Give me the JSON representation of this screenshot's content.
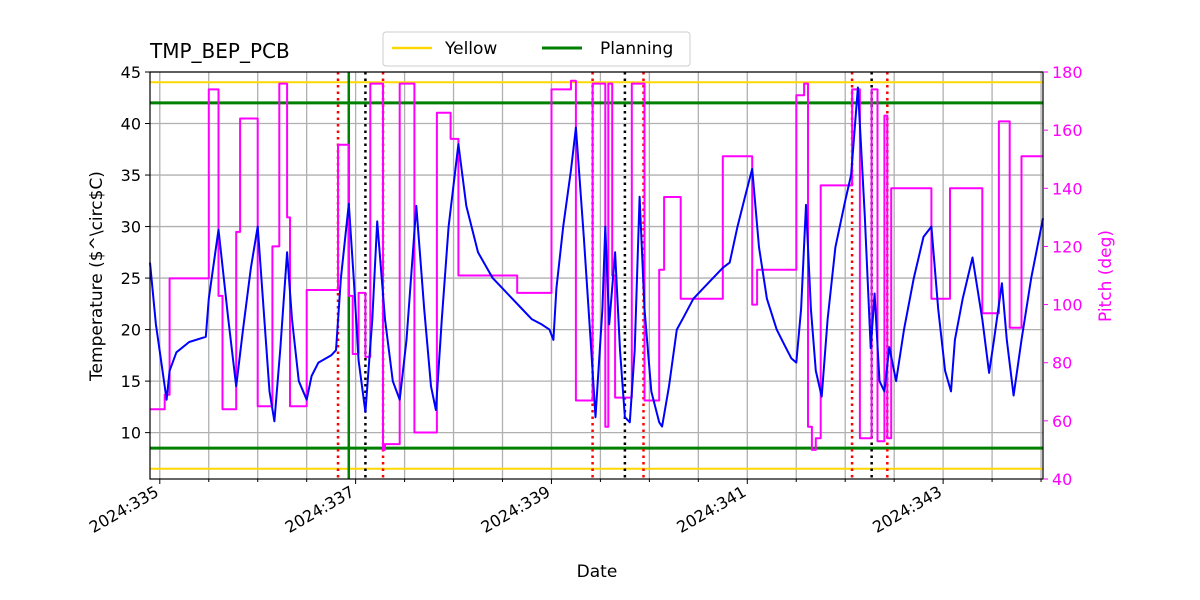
{
  "chart_data": {
    "type": "line",
    "title": "TMP_BEP_PCB",
    "xlabel": "Date",
    "ylabel": "Temperature ($^\\circ$C)",
    "y2label": "Pitch (deg)",
    "xlim": [
      334.9,
      344.02
    ],
    "ylim": [
      5.5,
      45
    ],
    "y2lim": [
      40,
      180
    ],
    "x_ticks": [
      335,
      337,
      339,
      341,
      343
    ],
    "x_tick_labels": [
      "2024:335",
      "2024:337",
      "2024:339",
      "2024:341",
      "2024:343"
    ],
    "y_ticks": [
      10,
      15,
      20,
      25,
      30,
      35,
      40,
      45
    ],
    "y2_ticks": [
      40,
      60,
      80,
      100,
      120,
      140,
      160,
      180
    ],
    "grid": true,
    "legend": {
      "placement": "top-center",
      "entries": [
        {
          "label": "Yellow",
          "color": "#ffd700"
        },
        {
          "label": "Planning",
          "color": "#008000"
        }
      ]
    },
    "hlines": [
      {
        "name": "Yellow",
        "values": [
          44,
          6.5
        ],
        "color": "#ffd700"
      },
      {
        "name": "Planning",
        "values": [
          42,
          8.5
        ],
        "color": "#008000"
      }
    ],
    "vlines_red_dotted": [
      336.82,
      337.28,
      339.42,
      339.94,
      342.07,
      342.43
    ],
    "vlines_black_dotted": [
      337.1,
      339.75,
      342.27
    ],
    "vline_green_solid": [
      336.93
    ],
    "colors": {
      "temperature": "#0000ff",
      "pitch": "#ff00ff",
      "grid": "#b0b0b0",
      "right_axis": "#ff00ff"
    },
    "series": [
      {
        "axis": "left",
        "color": "#0000ff",
        "points": [
          [
            334.9,
            26.5
          ],
          [
            334.96,
            20.5
          ],
          [
            335.02,
            16.5
          ],
          [
            335.07,
            13.2
          ],
          [
            335.1,
            16
          ],
          [
            335.17,
            17.8
          ],
          [
            335.3,
            18.8
          ],
          [
            335.47,
            19.3
          ],
          [
            335.5,
            23
          ],
          [
            335.6,
            29.7
          ],
          [
            335.7,
            21
          ],
          [
            335.78,
            14.5
          ],
          [
            335.85,
            20
          ],
          [
            335.93,
            26
          ],
          [
            336.0,
            30
          ],
          [
            336.06,
            22
          ],
          [
            336.12,
            14
          ],
          [
            336.17,
            11.1
          ],
          [
            336.23,
            18
          ],
          [
            336.3,
            27.5
          ],
          [
            336.35,
            21
          ],
          [
            336.42,
            15
          ],
          [
            336.5,
            13.2
          ],
          [
            336.55,
            15.5
          ],
          [
            336.62,
            16.8
          ],
          [
            336.75,
            17.5
          ],
          [
            336.8,
            18
          ],
          [
            336.85,
            25
          ],
          [
            336.93,
            32.2
          ],
          [
            336.98,
            25
          ],
          [
            337.03,
            17
          ],
          [
            337.1,
            12
          ],
          [
            337.17,
            21
          ],
          [
            337.22,
            30.5
          ],
          [
            337.3,
            21
          ],
          [
            337.38,
            15
          ],
          [
            337.45,
            13.2
          ],
          [
            337.52,
            19
          ],
          [
            337.62,
            32
          ],
          [
            337.7,
            22
          ],
          [
            337.77,
            14.5
          ],
          [
            337.82,
            12.2
          ],
          [
            337.88,
            21
          ],
          [
            337.95,
            30
          ],
          [
            338.05,
            38
          ],
          [
            338.13,
            32
          ],
          [
            338.25,
            27.5
          ],
          [
            338.4,
            25
          ],
          [
            338.6,
            23
          ],
          [
            338.7,
            22
          ],
          [
            338.8,
            21
          ],
          [
            338.9,
            20.5
          ],
          [
            338.98,
            20
          ],
          [
            339.02,
            19
          ],
          [
            339.05,
            24
          ],
          [
            339.12,
            30
          ],
          [
            339.2,
            35.5
          ],
          [
            339.25,
            39.6
          ],
          [
            339.33,
            29
          ],
          [
            339.4,
            19
          ],
          [
            339.45,
            11.5
          ],
          [
            339.52,
            22
          ],
          [
            339.55,
            30
          ],
          [
            339.59,
            20.5
          ],
          [
            339.65,
            27.5
          ],
          [
            339.7,
            18
          ],
          [
            339.75,
            11.5
          ],
          [
            339.8,
            11
          ],
          [
            339.85,
            18
          ],
          [
            339.9,
            32.9
          ],
          [
            339.95,
            22
          ],
          [
            340.02,
            14
          ],
          [
            340.1,
            11
          ],
          [
            340.13,
            10.6
          ],
          [
            340.2,
            14.5
          ],
          [
            340.28,
            20
          ],
          [
            340.35,
            21.2
          ],
          [
            340.45,
            23
          ],
          [
            340.6,
            24.5
          ],
          [
            340.75,
            26
          ],
          [
            340.82,
            26.5
          ],
          [
            340.9,
            30
          ],
          [
            340.98,
            33
          ],
          [
            341.05,
            35.6
          ],
          [
            341.12,
            28
          ],
          [
            341.2,
            23
          ],
          [
            341.3,
            20
          ],
          [
            341.38,
            18.5
          ],
          [
            341.45,
            17.2
          ],
          [
            341.5,
            16.8
          ],
          [
            341.55,
            22
          ],
          [
            341.6,
            32.1
          ],
          [
            341.65,
            22
          ],
          [
            341.7,
            16
          ],
          [
            341.76,
            13.5
          ],
          [
            341.82,
            21
          ],
          [
            341.9,
            28
          ],
          [
            342.0,
            32.5
          ],
          [
            342.06,
            35
          ],
          [
            342.13,
            43.5
          ],
          [
            342.2,
            31
          ],
          [
            342.26,
            18.2
          ],
          [
            342.3,
            23.5
          ],
          [
            342.35,
            15
          ],
          [
            342.4,
            14
          ],
          [
            342.45,
            18.3
          ],
          [
            342.52,
            15
          ],
          [
            342.6,
            20
          ],
          [
            342.7,
            25
          ],
          [
            342.8,
            29
          ],
          [
            342.88,
            30
          ],
          [
            342.95,
            22
          ],
          [
            343.02,
            16
          ],
          [
            343.08,
            14
          ],
          [
            343.12,
            19
          ],
          [
            343.2,
            23
          ],
          [
            343.3,
            27
          ],
          [
            343.4,
            21
          ],
          [
            343.47,
            15.8
          ],
          [
            343.52,
            19
          ],
          [
            343.6,
            24.5
          ],
          [
            343.65,
            19
          ],
          [
            343.72,
            13.6
          ],
          [
            343.8,
            19
          ],
          [
            343.9,
            25
          ],
          [
            344.02,
            30.8
          ]
        ]
      },
      {
        "axis": "right",
        "color": "#ff00ff",
        "points": [
          [
            334.9,
            64
          ],
          [
            335.05,
            64
          ],
          [
            335.05,
            69
          ],
          [
            335.1,
            69
          ],
          [
            335.1,
            109
          ],
          [
            335.5,
            109
          ],
          [
            335.5,
            174
          ],
          [
            335.6,
            174
          ],
          [
            335.6,
            103
          ],
          [
            335.64,
            103
          ],
          [
            335.64,
            64
          ],
          [
            335.78,
            64
          ],
          [
            335.78,
            125
          ],
          [
            335.82,
            125
          ],
          [
            335.82,
            164
          ],
          [
            336.0,
            164
          ],
          [
            336.0,
            65
          ],
          [
            336.15,
            65
          ],
          [
            336.15,
            120
          ],
          [
            336.22,
            120
          ],
          [
            336.22,
            176
          ],
          [
            336.3,
            176
          ],
          [
            336.3,
            130
          ],
          [
            336.33,
            130
          ],
          [
            336.33,
            65
          ],
          [
            336.5,
            65
          ],
          [
            336.5,
            105
          ],
          [
            336.82,
            105
          ],
          [
            336.82,
            155
          ],
          [
            336.93,
            155
          ],
          [
            336.93,
            103
          ],
          [
            336.97,
            103
          ],
          [
            336.97,
            83
          ],
          [
            337.03,
            83
          ],
          [
            337.03,
            104
          ],
          [
            337.1,
            104
          ],
          [
            337.1,
            82
          ],
          [
            337.15,
            82
          ],
          [
            337.15,
            176
          ],
          [
            337.28,
            176
          ],
          [
            337.28,
            50
          ],
          [
            337.3,
            50
          ],
          [
            337.3,
            52
          ],
          [
            337.45,
            52
          ],
          [
            337.45,
            176
          ],
          [
            337.6,
            176
          ],
          [
            337.6,
            56
          ],
          [
            337.83,
            56
          ],
          [
            337.83,
            166
          ],
          [
            337.97,
            166
          ],
          [
            337.97,
            157
          ],
          [
            338.05,
            157
          ],
          [
            338.05,
            110
          ],
          [
            338.65,
            110
          ],
          [
            338.65,
            104
          ],
          [
            339.0,
            104
          ],
          [
            339.0,
            174
          ],
          [
            339.2,
            174
          ],
          [
            339.2,
            177
          ],
          [
            339.25,
            177
          ],
          [
            339.25,
            67
          ],
          [
            339.42,
            67
          ],
          [
            339.42,
            176
          ],
          [
            339.55,
            176
          ],
          [
            339.55,
            58
          ],
          [
            339.58,
            58
          ],
          [
            339.58,
            176
          ],
          [
            339.62,
            176
          ],
          [
            339.62,
            110
          ],
          [
            339.65,
            110
          ],
          [
            339.65,
            68
          ],
          [
            339.82,
            68
          ],
          [
            339.82,
            176
          ],
          [
            339.95,
            176
          ],
          [
            339.95,
            67
          ],
          [
            340.1,
            67
          ],
          [
            340.1,
            112
          ],
          [
            340.15,
            112
          ],
          [
            340.15,
            137
          ],
          [
            340.32,
            137
          ],
          [
            340.32,
            102
          ],
          [
            340.75,
            102
          ],
          [
            340.75,
            151
          ],
          [
            341.05,
            151
          ],
          [
            341.05,
            100
          ],
          [
            341.1,
            100
          ],
          [
            341.1,
            112
          ],
          [
            341.5,
            112
          ],
          [
            341.5,
            172
          ],
          [
            341.58,
            172
          ],
          [
            341.58,
            176
          ],
          [
            341.62,
            176
          ],
          [
            341.62,
            58
          ],
          [
            341.66,
            58
          ],
          [
            341.66,
            50
          ],
          [
            341.7,
            50
          ],
          [
            341.7,
            54
          ],
          [
            341.75,
            54
          ],
          [
            341.75,
            141
          ],
          [
            342.07,
            141
          ],
          [
            342.07,
            174
          ],
          [
            342.15,
            174
          ],
          [
            342.15,
            54
          ],
          [
            342.27,
            54
          ],
          [
            342.27,
            174
          ],
          [
            342.33,
            174
          ],
          [
            342.33,
            53
          ],
          [
            342.4,
            53
          ],
          [
            342.4,
            165
          ],
          [
            342.43,
            165
          ],
          [
            342.43,
            54
          ],
          [
            342.47,
            54
          ],
          [
            342.47,
            140
          ],
          [
            342.88,
            140
          ],
          [
            342.88,
            102
          ],
          [
            343.07,
            102
          ],
          [
            343.07,
            140
          ],
          [
            343.4,
            140
          ],
          [
            343.4,
            97
          ],
          [
            343.57,
            97
          ],
          [
            343.57,
            163
          ],
          [
            343.68,
            163
          ],
          [
            343.68,
            92
          ],
          [
            343.8,
            92
          ],
          [
            343.8,
            151
          ],
          [
            344.02,
            151
          ]
        ]
      }
    ]
  }
}
